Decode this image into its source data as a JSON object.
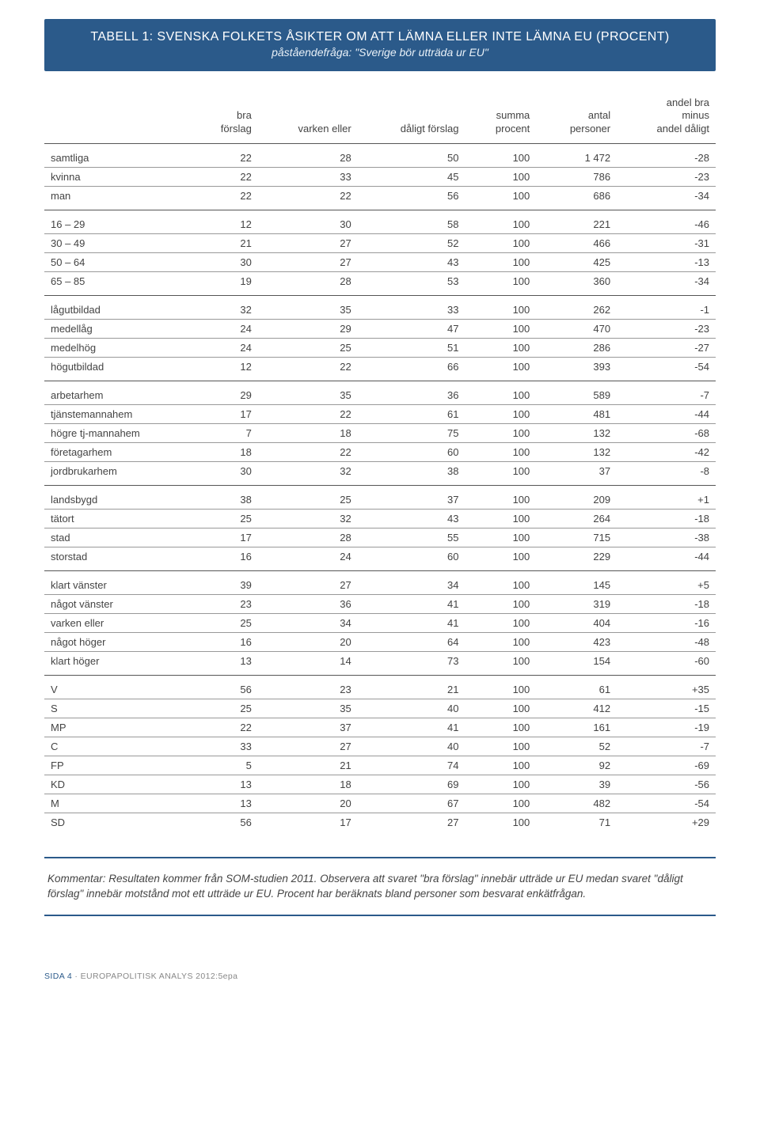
{
  "header": {
    "title": "TABELL 1: SVENSKA FOLKETS ÅSIKTER OM ATT LÄMNA ELLER INTE LÄMNA EU (PROCENT)",
    "subtitle": "påståendefråga: \"Sverige bör utträda ur EU\""
  },
  "table": {
    "columns": [
      "",
      "bra förslag",
      "varken eller",
      "dåligt förslag",
      "summa procent",
      "antal personer",
      "andel bra minus andel dåligt"
    ],
    "groups": [
      [
        {
          "label": "samtliga",
          "cells": [
            "22",
            "28",
            "50",
            "100",
            "1 472",
            "-28"
          ]
        },
        {
          "label": "kvinna",
          "cells": [
            "22",
            "33",
            "45",
            "100",
            "786",
            "-23"
          ]
        },
        {
          "label": "man",
          "cells": [
            "22",
            "22",
            "56",
            "100",
            "686",
            "-34"
          ]
        }
      ],
      [
        {
          "label": "16 – 29",
          "cells": [
            "12",
            "30",
            "58",
            "100",
            "221",
            "-46"
          ]
        },
        {
          "label": "30 – 49",
          "cells": [
            "21",
            "27",
            "52",
            "100",
            "466",
            "-31"
          ]
        },
        {
          "label": "50 – 64",
          "cells": [
            "30",
            "27",
            "43",
            "100",
            "425",
            "-13"
          ]
        },
        {
          "label": "65 – 85",
          "cells": [
            "19",
            "28",
            "53",
            "100",
            "360",
            "-34"
          ]
        }
      ],
      [
        {
          "label": "lågutbildad",
          "cells": [
            "32",
            "35",
            "33",
            "100",
            "262",
            "-1"
          ]
        },
        {
          "label": "medellåg",
          "cells": [
            "24",
            "29",
            "47",
            "100",
            "470",
            "-23"
          ]
        },
        {
          "label": "medelhög",
          "cells": [
            "24",
            "25",
            "51",
            "100",
            "286",
            "-27"
          ]
        },
        {
          "label": "högutbildad",
          "cells": [
            "12",
            "22",
            "66",
            "100",
            "393",
            "-54"
          ]
        }
      ],
      [
        {
          "label": "arbetarhem",
          "cells": [
            "29",
            "35",
            "36",
            "100",
            "589",
            "-7"
          ]
        },
        {
          "label": "tjänstemannahem",
          "cells": [
            "17",
            "22",
            "61",
            "100",
            "481",
            "-44"
          ]
        },
        {
          "label": "högre tj-mannahem",
          "cells": [
            "7",
            "18",
            "75",
            "100",
            "132",
            "-68"
          ]
        },
        {
          "label": "företagarhem",
          "cells": [
            "18",
            "22",
            "60",
            "100",
            "132",
            "-42"
          ]
        },
        {
          "label": "jordbrukarhem",
          "cells": [
            "30",
            "32",
            "38",
            "100",
            "37",
            "-8"
          ]
        }
      ],
      [
        {
          "label": "landsbygd",
          "cells": [
            "38",
            "25",
            "37",
            "100",
            "209",
            "+1"
          ]
        },
        {
          "label": "tätort",
          "cells": [
            "25",
            "32",
            "43",
            "100",
            "264",
            "-18"
          ]
        },
        {
          "label": "stad",
          "cells": [
            "17",
            "28",
            "55",
            "100",
            "715",
            "-38"
          ]
        },
        {
          "label": "storstad",
          "cells": [
            "16",
            "24",
            "60",
            "100",
            "229",
            "-44"
          ]
        }
      ],
      [
        {
          "label": "klart vänster",
          "cells": [
            "39",
            "27",
            "34",
            "100",
            "145",
            "+5"
          ]
        },
        {
          "label": "något vänster",
          "cells": [
            "23",
            "36",
            "41",
            "100",
            "319",
            "-18"
          ]
        },
        {
          "label": "varken eller",
          "cells": [
            "25",
            "34",
            "41",
            "100",
            "404",
            "-16"
          ]
        },
        {
          "label": "något höger",
          "cells": [
            "16",
            "20",
            "64",
            "100",
            "423",
            "-48"
          ]
        },
        {
          "label": "klart höger",
          "cells": [
            "13",
            "14",
            "73",
            "100",
            "154",
            "-60"
          ]
        }
      ],
      [
        {
          "label": "V",
          "cells": [
            "56",
            "23",
            "21",
            "100",
            "61",
            "+35"
          ]
        },
        {
          "label": "S",
          "cells": [
            "25",
            "35",
            "40",
            "100",
            "412",
            "-15"
          ]
        },
        {
          "label": "MP",
          "cells": [
            "22",
            "37",
            "41",
            "100",
            "161",
            "-19"
          ]
        },
        {
          "label": "C",
          "cells": [
            "33",
            "27",
            "40",
            "100",
            "52",
            "-7"
          ]
        },
        {
          "label": "FP",
          "cells": [
            "5",
            "21",
            "74",
            "100",
            "92",
            "-69"
          ]
        },
        {
          "label": "KD",
          "cells": [
            "13",
            "18",
            "69",
            "100",
            "39",
            "-56"
          ]
        },
        {
          "label": "M",
          "cells": [
            "13",
            "20",
            "67",
            "100",
            "482",
            "-54"
          ]
        },
        {
          "label": "SD",
          "cells": [
            "56",
            "17",
            "27",
            "100",
            "71",
            "+29"
          ]
        }
      ]
    ]
  },
  "comment": {
    "lead": "Kommentar:",
    "text": " Resultaten kommer från SOM-studien 2011. Observera att svaret \"bra förslag\" innebär utträde ur EU medan svaret \"dåligt förslag\" innebär motstånd mot ett utträde ur EU. Procent har beräknats bland personer som besvarat enkätfrågan."
  },
  "footer": {
    "page_label": "SIDA 4",
    "sep": " · ",
    "doc_label": "EUROPAPOLITISK ANALYS 2012:5epa"
  }
}
